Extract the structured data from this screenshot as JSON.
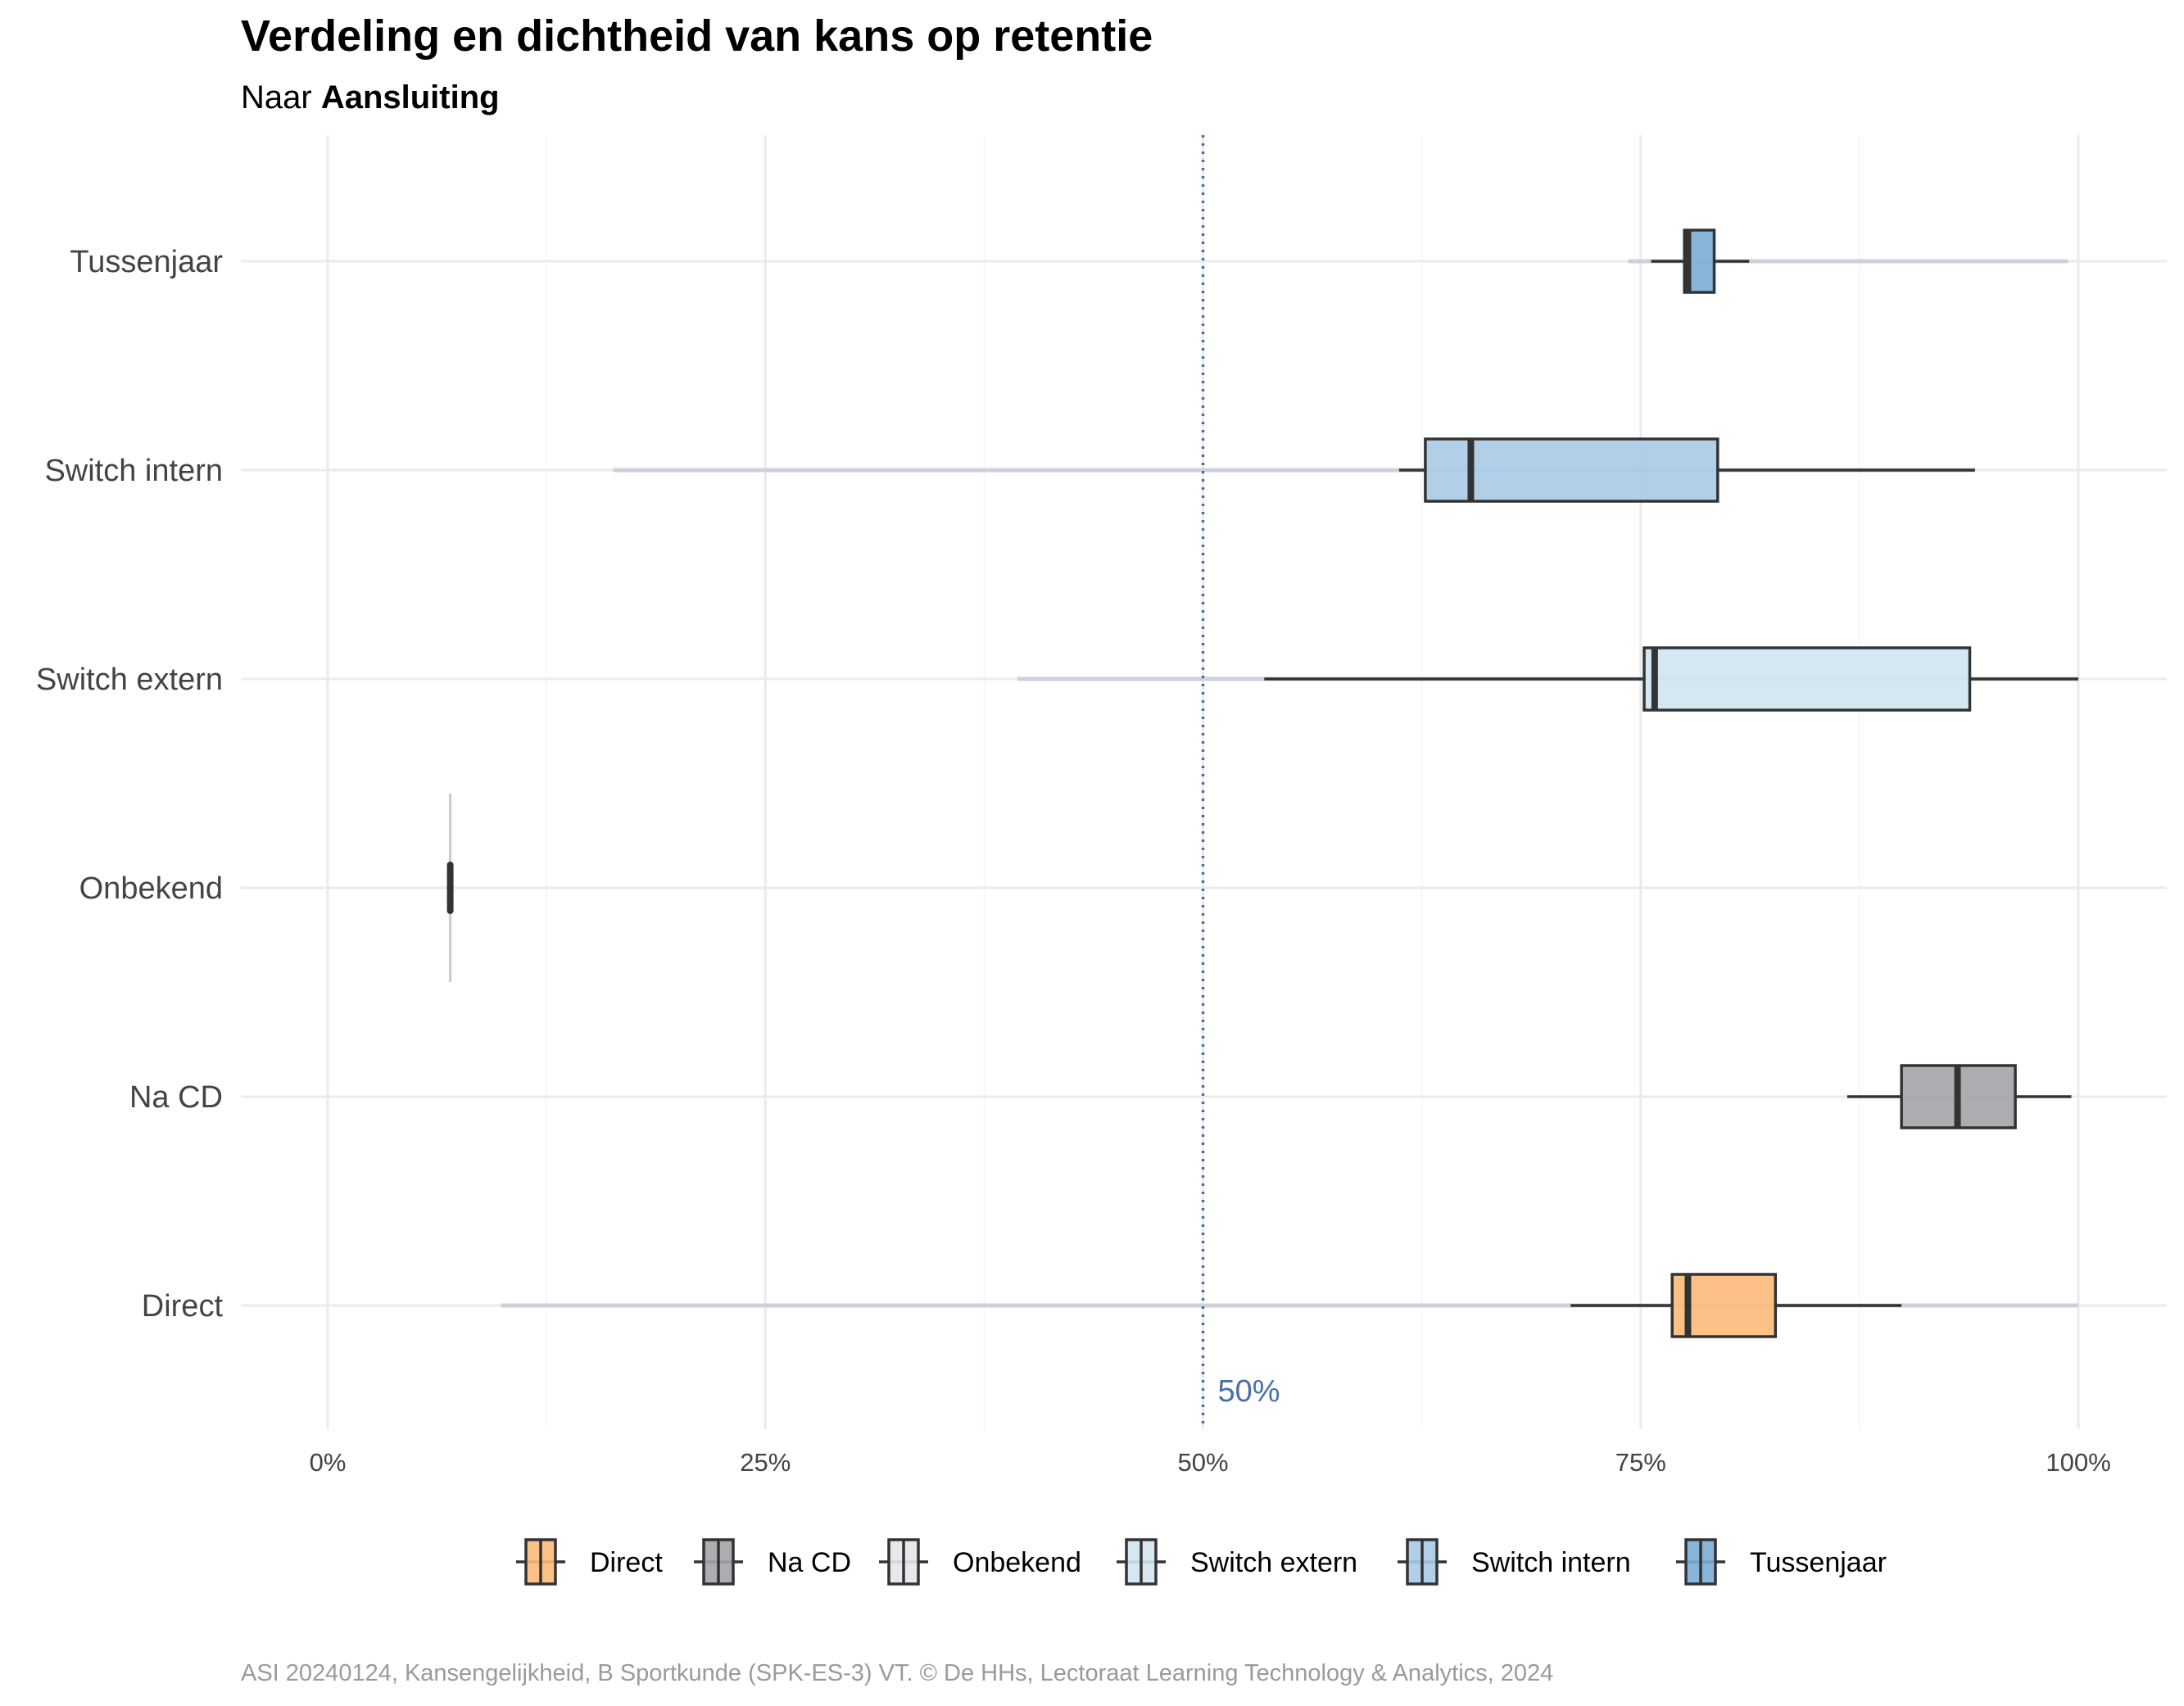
{
  "title": "Verdeling en dichtheid van kans op retentie",
  "subtitle_prefix": "Naar ",
  "subtitle_bold": "Aansluiting",
  "caption": "ASI 20240124, Kansengelijkheid, B Sportkunde (SPK-ES-3) VT. © De HHs, Lectoraat Learning Technology & Analytics, 2024",
  "chart_data": {
    "type": "boxplot",
    "orientation": "horizontal",
    "xlim": [
      0,
      100
    ],
    "x_ticks": [
      0,
      25,
      50,
      75,
      100
    ],
    "x_tick_labels": [
      "0%",
      "25%",
      "50%",
      "75%",
      "100%"
    ],
    "categories": [
      "Direct",
      "Na CD",
      "Onbekend",
      "Switch extern",
      "Switch intern",
      "Tussenjaar"
    ],
    "reference_line": {
      "value": 50,
      "label": "50%",
      "color": "#4a6fa5"
    },
    "series": [
      {
        "name": "Direct",
        "color": "#fdb97a",
        "whisker_low": 71,
        "q1": 76.8,
        "median": 77.7,
        "q3": 82.7,
        "whisker_high": 89.9,
        "density_range": [
          9.9,
          100
        ]
      },
      {
        "name": "Na CD",
        "color": "#a3a3a8",
        "whisker_low": 86.8,
        "q1": 89.9,
        "median": 93.1,
        "q3": 96.4,
        "whisker_high": 99.6,
        "density_range": [
          null,
          null
        ]
      },
      {
        "name": "Onbekend",
        "color": "#e6e6ea",
        "whisker_low": 7.0,
        "q1": 7.0,
        "median": 7.0,
        "q3": 7.0,
        "whisker_high": 7.0,
        "density_range": [
          7.0,
          7.0
        ]
      },
      {
        "name": "Switch extern",
        "color": "#d2e4f3",
        "whisker_low": 53.5,
        "q1": 75.2,
        "median": 75.8,
        "q3": 93.8,
        "whisker_high": 100,
        "density_range": [
          39.4,
          100
        ]
      },
      {
        "name": "Switch intern",
        "color": "#a8cbe6",
        "whisker_low": 61.2,
        "q1": 62.7,
        "median": 65.3,
        "q3": 79.4,
        "whisker_high": 94.1,
        "density_range": [
          16.3,
          94.1
        ]
      },
      {
        "name": "Tussenjaar",
        "color": "#7aaed6",
        "whisker_low": 75.6,
        "q1": 77.5,
        "median": 77.7,
        "q3": 79.2,
        "whisker_high": 81.2,
        "density_range": [
          74.3,
          99.4
        ]
      }
    ],
    "grid": true,
    "legend_position": "bottom"
  }
}
